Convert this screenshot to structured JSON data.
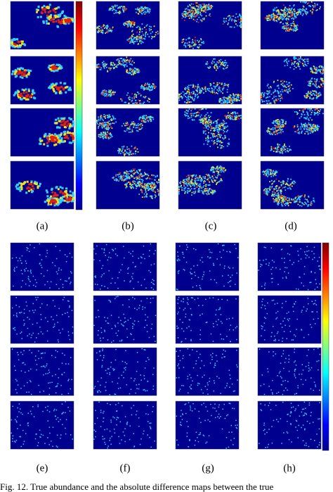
{
  "figure": {
    "top_labels": [
      "(a)",
      "(b)",
      "(c)",
      "(d)"
    ],
    "bottom_labels": [
      "(e)",
      "(f)",
      "(g)",
      "(h)"
    ],
    "caption": "Fig. 12.   True abundance and the absolute difference maps between the true"
  }
}
